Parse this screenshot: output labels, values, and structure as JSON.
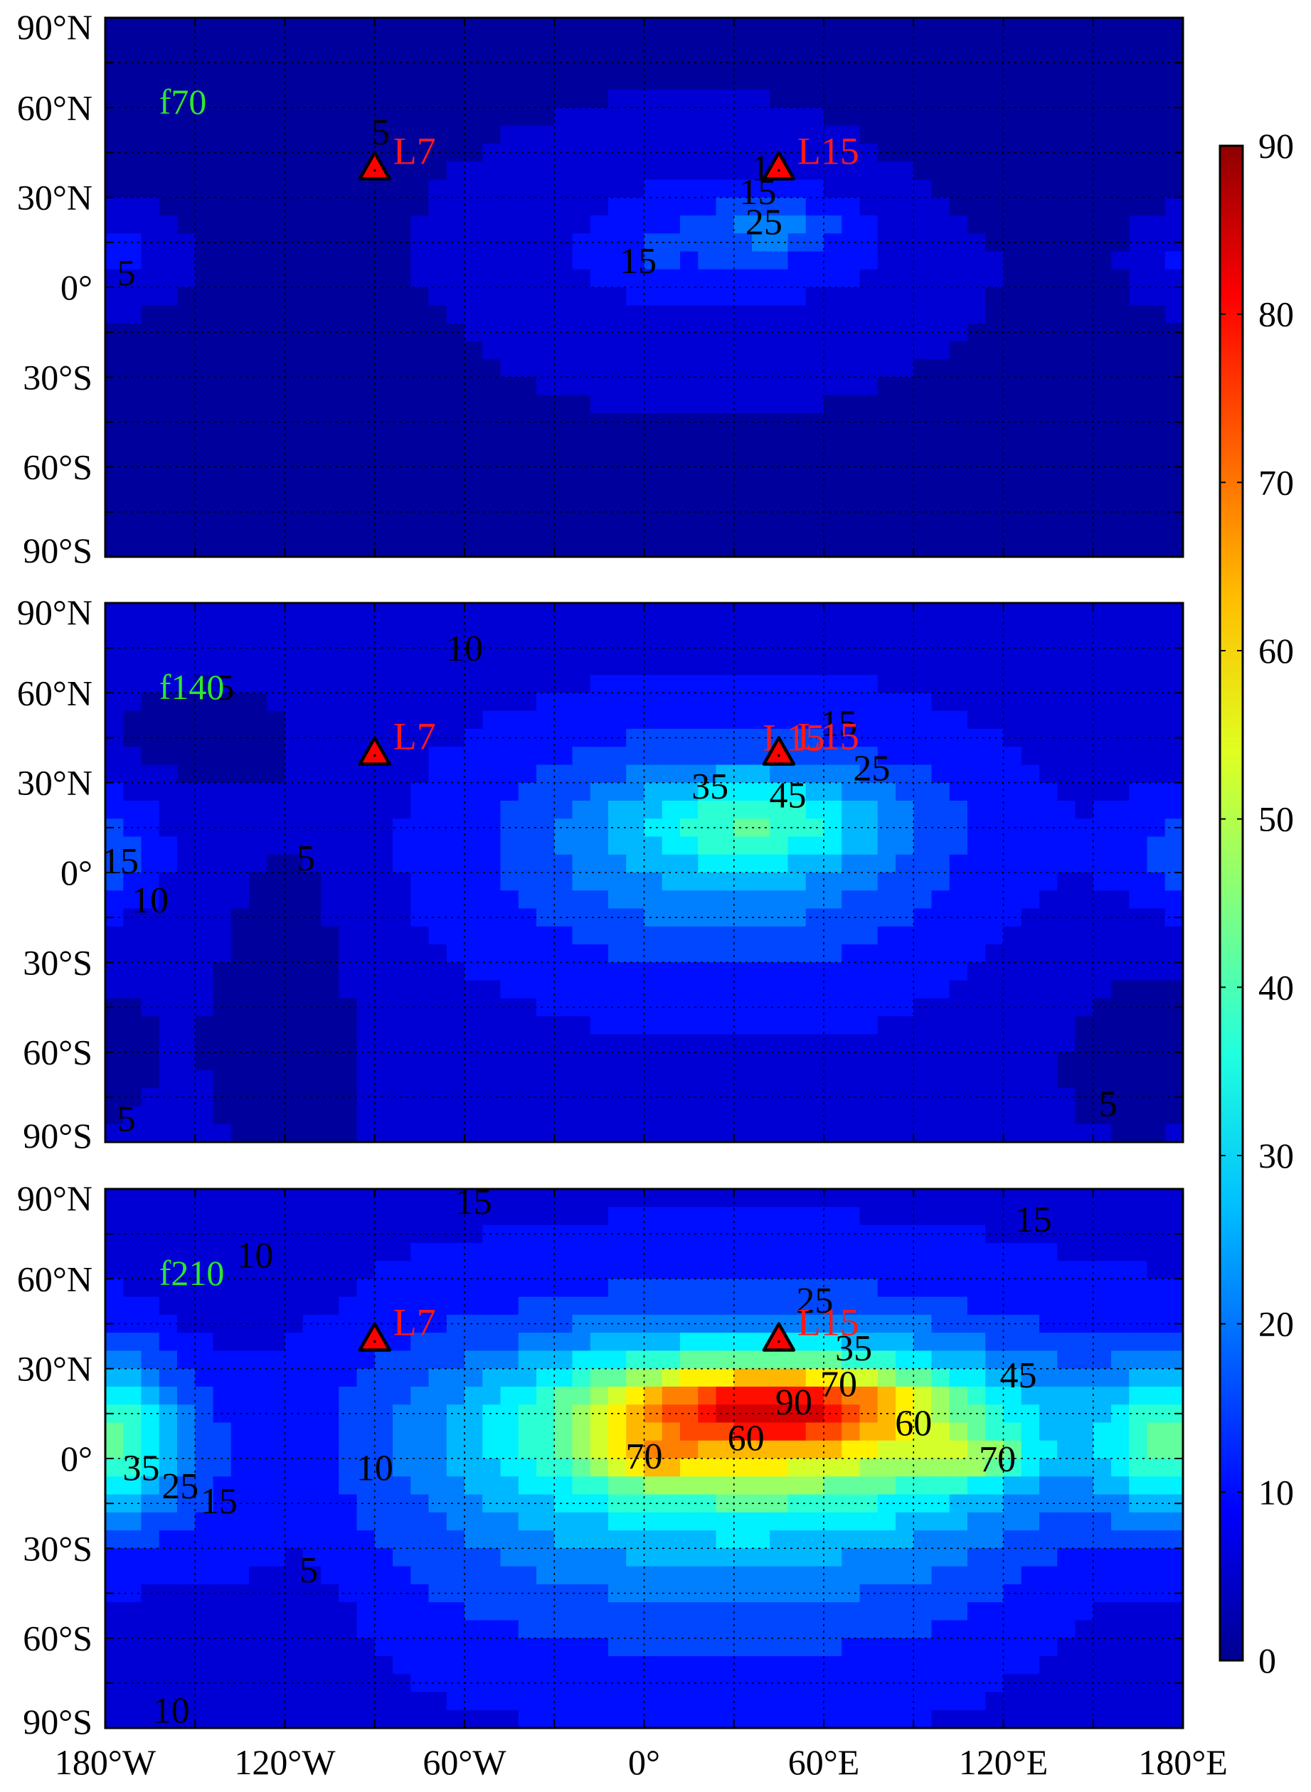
{
  "chart_data": {
    "type": "heatmap",
    "title": "",
    "xlabel": "",
    "ylabel": "",
    "xlim": [
      -180,
      180
    ],
    "ylim": [
      -90,
      90
    ],
    "grid": true,
    "x_ticks": [
      -180,
      -150,
      -120,
      -90,
      -60,
      -30,
      0,
      30,
      60,
      90,
      120,
      150,
      180
    ],
    "x_tick_labels": [
      "180°W",
      "120°W",
      "60°W",
      "0°",
      "60°E",
      "120°E",
      "180°E"
    ],
    "x_tick_label_values": [
      -180,
      -120,
      -60,
      0,
      60,
      120,
      180
    ],
    "y_ticks": [
      -90,
      -75,
      -60,
      -45,
      -30,
      -15,
      0,
      15,
      30,
      45,
      60,
      75,
      90
    ],
    "y_tick_labels": [
      "90°N",
      "60°N",
      "30°N",
      "0°",
      "30°S",
      "60°S",
      "90°S"
    ],
    "y_tick_label_values": [
      90,
      60,
      30,
      0,
      -30,
      -60,
      -90
    ],
    "colorbar": {
      "min": 0,
      "max": 90,
      "tick_values": [
        0,
        10,
        20,
        30,
        40,
        50,
        60,
        70,
        80,
        90
      ],
      "tick_labels": [
        "0",
        "10",
        "20",
        "30",
        "40",
        "50",
        "60",
        "70",
        "80",
        "90"
      ],
      "colormap": "jet",
      "colors": [
        "#00008f",
        "#0000ff",
        "#0060ff",
        "#00bfff",
        "#20ffdf",
        "#80ff7f",
        "#dfff20",
        "#ffbf00",
        "#ff6000",
        "#ff0000",
        "#8f0000"
      ]
    },
    "contour_levels": [
      0,
      5,
      10,
      15,
      20,
      25,
      30,
      35,
      40,
      45,
      50,
      55,
      60,
      65,
      70,
      75,
      80,
      85,
      90
    ],
    "stations": [
      {
        "name": "L7",
        "lon": -90,
        "lat": 40,
        "color": "#ff0000"
      },
      {
        "name": "L15",
        "lon": 45,
        "lat": 40,
        "color": "#ff0000"
      }
    ],
    "panels": [
      {
        "label": "f70",
        "background": 3,
        "features": [
          {
            "lon": -175,
            "lat": 10,
            "value": 8,
            "sx": 15,
            "sy": 12
          },
          {
            "lon": 120,
            "lat": 40,
            "value": 2,
            "sx": 40,
            "sy": 20,
            "sign": -1
          },
          {
            "lon": 22,
            "lat": 10,
            "value": 4,
            "sx": 70,
            "sy": 45
          },
          {
            "lon": 25,
            "lat": 15,
            "value": 5,
            "sx": 50,
            "sy": 20
          },
          {
            "lon": 40,
            "lat": 18,
            "value": 5,
            "sx": 30,
            "sy": 12
          },
          {
            "lon": 45,
            "lat": 20,
            "value": 7,
            "sx": 12,
            "sy": 5
          },
          {
            "lon": 0,
            "lat": 10,
            "value": 3,
            "sx": 8,
            "sy": 6
          }
        ],
        "contour_labels": [
          {
            "text": "5",
            "lon": -88,
            "lat": 52
          },
          {
            "text": "10",
            "lon": 42,
            "lat": 40
          },
          {
            "text": "15",
            "lon": 38,
            "lat": 32
          },
          {
            "text": "25",
            "lon": 40,
            "lat": 22
          },
          {
            "text": "15",
            "lon": -2,
            "lat": 9
          },
          {
            "text": "5",
            "lon": -173,
            "lat": 5
          }
        ]
      },
      {
        "label": "f140",
        "background": 6,
        "features": [
          {
            "lon": -150,
            "lat": 45,
            "value": 4,
            "sx": 20,
            "sy": 12,
            "sign": -1
          },
          {
            "lon": -115,
            "lat": -35,
            "value": 4,
            "sx": 18,
            "sy": 50,
            "sign": -1
          },
          {
            "lon": 160,
            "lat": -50,
            "value": 3,
            "sx": 30,
            "sy": 30,
            "sign": -1
          },
          {
            "lon": -180,
            "lat": 5,
            "value": 10,
            "sx": 15,
            "sy": 15
          },
          {
            "lon": 30,
            "lat": 5,
            "value": 10,
            "sx": 80,
            "sy": 45
          },
          {
            "lon": 25,
            "lat": 10,
            "value": 12,
            "sx": 45,
            "sy": 22
          },
          {
            "lon": 40,
            "lat": 18,
            "value": 14,
            "sx": 28,
            "sy": 10
          }
        ],
        "contour_labels": [
          {
            "text": "10",
            "lon": -60,
            "lat": 75
          },
          {
            "text": "5",
            "lon": -140,
            "lat": 62
          },
          {
            "text": "15",
            "lon": 65,
            "lat": 50
          },
          {
            "text": "L15",
            "lon": 50,
            "lat": 45
          },
          {
            "text": "25",
            "lon": 76,
            "lat": 35
          },
          {
            "text": "35",
            "lon": 22,
            "lat": 29
          },
          {
            "text": "45",
            "lon": 48,
            "lat": 26
          },
          {
            "text": "15",
            "lon": -175,
            "lat": 4
          },
          {
            "text": "10",
            "lon": -165,
            "lat": -9
          },
          {
            "text": "5",
            "lon": -113,
            "lat": 5
          },
          {
            "text": "5",
            "lon": -173,
            "lat": -82
          },
          {
            "text": "5",
            "lon": 155,
            "lat": -77
          }
        ]
      },
      {
        "label": "f210",
        "background": 8,
        "features": [
          {
            "lon": -135,
            "lat": 55,
            "value": 3,
            "sx": 18,
            "sy": 12,
            "sign": -1
          },
          {
            "lon": -110,
            "lat": -45,
            "value": 3,
            "sx": 15,
            "sy": 40,
            "sign": -1
          },
          {
            "lon": 160,
            "lat": -45,
            "value": 3,
            "sx": 30,
            "sy": 30,
            "sign": -1
          },
          {
            "lon": -180,
            "lat": 5,
            "value": 28,
            "sx": 20,
            "sy": 20
          },
          {
            "lon": 30,
            "lat": -5,
            "value": 22,
            "sx": 90,
            "sy": 40
          },
          {
            "lon": 40,
            "lat": 12,
            "value": 35,
            "sx": 55,
            "sy": 18
          },
          {
            "lon": 45,
            "lat": 18,
            "value": 25,
            "sx": 35,
            "sy": 8
          },
          {
            "lon": 0,
            "lat": 0,
            "value": 15,
            "sx": 12,
            "sy": 5
          },
          {
            "lon": 110,
            "lat": 0,
            "value": 15,
            "sx": 15,
            "sy": 6
          }
        ],
        "contour_labels": [
          {
            "text": "15",
            "lon": -57,
            "lat": 86
          },
          {
            "text": "10",
            "lon": -130,
            "lat": 68
          },
          {
            "text": "15",
            "lon": 130,
            "lat": 80
          },
          {
            "text": "25",
            "lon": 57,
            "lat": 53
          },
          {
            "text": "35",
            "lon": 70,
            "lat": 37
          },
          {
            "text": "45",
            "lon": 125,
            "lat": 28
          },
          {
            "text": "70",
            "lon": 65,
            "lat": 25
          },
          {
            "text": "90",
            "lon": 50,
            "lat": 19
          },
          {
            "text": "60",
            "lon": 90,
            "lat": 12
          },
          {
            "text": "60",
            "lon": 34,
            "lat": 7
          },
          {
            "text": "70",
            "lon": 0,
            "lat": 1
          },
          {
            "text": "70",
            "lon": 118,
            "lat": 0
          },
          {
            "text": "35",
            "lon": -168,
            "lat": -3
          },
          {
            "text": "25",
            "lon": -155,
            "lat": -9
          },
          {
            "text": "15",
            "lon": -142,
            "lat": -14
          },
          {
            "text": "10",
            "lon": -90,
            "lat": -3
          },
          {
            "text": "5",
            "lon": -112,
            "lat": -37
          },
          {
            "text": "10",
            "lon": -158,
            "lat": -84
          }
        ]
      }
    ]
  }
}
